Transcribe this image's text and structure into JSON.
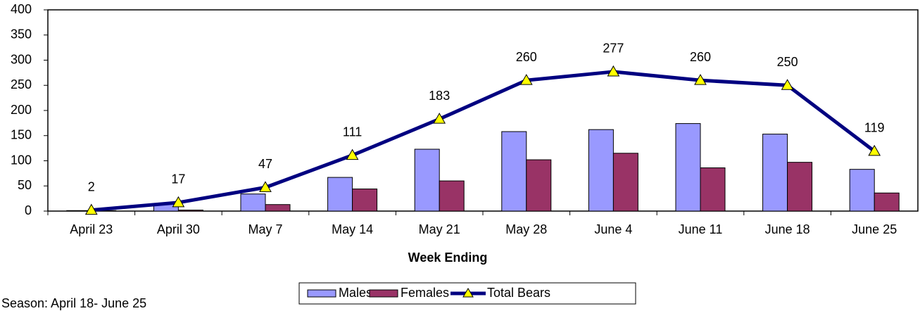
{
  "chart_data": {
    "type": "bar",
    "x_label": "Week Ending",
    "note": "Season: April 18- June 25",
    "categories": [
      "April 23",
      "April 30",
      "May 7",
      "May 14",
      "May 21",
      "May 28",
      "June 4",
      "June 11",
      "June 18",
      "June 25"
    ],
    "series": [
      {
        "name": "Males",
        "color": "#9999ff",
        "values": [
          1,
          15,
          34,
          67,
          123,
          158,
          162,
          174,
          153,
          83
        ]
      },
      {
        "name": "Females",
        "color": "#993366",
        "values": [
          1,
          2,
          13,
          44,
          60,
          102,
          115,
          86,
          97,
          36
        ]
      },
      {
        "name": "Total Bears",
        "type": "line",
        "color": "#000080",
        "marker_color": "#ffff00",
        "data_labels": true,
        "values": [
          2,
          17,
          47,
          111,
          183,
          260,
          277,
          260,
          250,
          119
        ]
      }
    ],
    "ylim": [
      0,
      400
    ],
    "yticks": [
      0,
      50,
      100,
      150,
      200,
      250,
      300,
      350,
      400
    ],
    "legend": "bottom",
    "grid": false
  }
}
